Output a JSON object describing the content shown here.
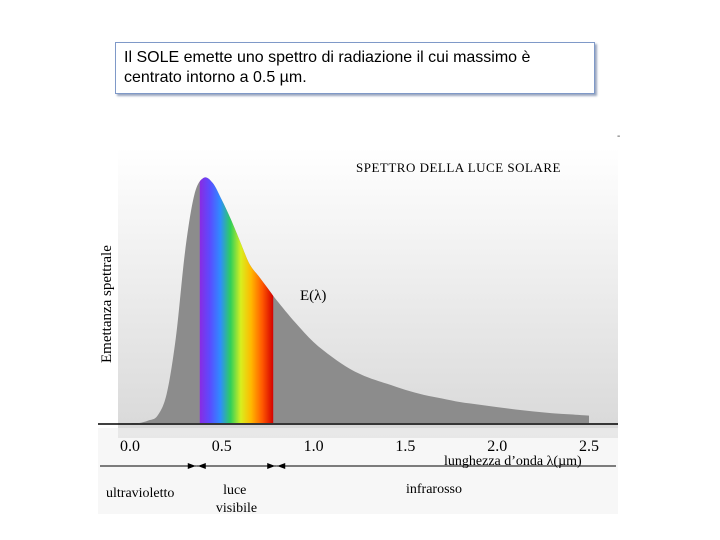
{
  "caption": {
    "line1": "Il SOLE emette uno spettro di radiazione il cui massimo è",
    "line2": "centrato intorno a 0.5 µm."
  },
  "chart_data": {
    "type": "area",
    "title": "SPETTRO DELLA LUCE SOLARE",
    "xlabel": "lunghezza d’onda λ(µm)",
    "ylabel": "Emettanza spettrale",
    "curve_label": "E(λ)",
    "xlim": [
      0.0,
      2.5
    ],
    "ylim": [
      0,
      1
    ],
    "x_ticks": [
      "0.0",
      "0.5",
      "1.0",
      "1.5",
      "2.0",
      "2.5"
    ],
    "x": [
      0.0,
      0.05,
      0.1,
      0.15,
      0.2,
      0.25,
      0.3,
      0.35,
      0.4,
      0.45,
      0.5,
      0.55,
      0.6,
      0.65,
      0.7,
      0.75,
      0.8,
      0.9,
      1.0,
      1.1,
      1.2,
      1.3,
      1.4,
      1.5,
      1.6,
      1.7,
      1.8,
      1.9,
      2.0,
      2.1,
      2.2,
      2.3,
      2.4,
      2.5
    ],
    "values": [
      0.0,
      0.0,
      0.01,
      0.03,
      0.12,
      0.35,
      0.7,
      0.93,
      1.0,
      0.98,
      0.91,
      0.83,
      0.74,
      0.65,
      0.6,
      0.55,
      0.5,
      0.41,
      0.33,
      0.27,
      0.22,
      0.185,
      0.16,
      0.135,
      0.115,
      0.1,
      0.085,
      0.075,
      0.065,
      0.055,
      0.047,
      0.04,
      0.035,
      0.03
    ],
    "visible_band": [
      0.38,
      0.78
    ],
    "regions": [
      "ultravioletto",
      "luce visibile",
      "infrarosso"
    ],
    "colors": {
      "area": "#8c8c8c",
      "axis": "#000000",
      "gradient_bg": "#e0e0e0"
    }
  }
}
